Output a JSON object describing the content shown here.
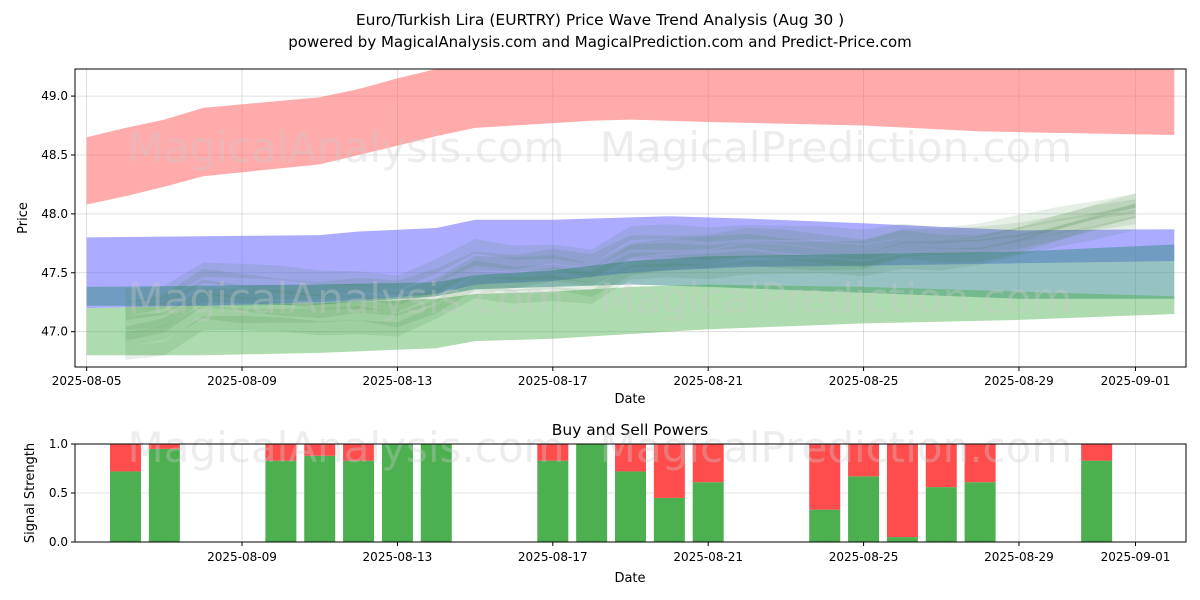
{
  "title": "Euro/Turkish Lira (EURTRY) Price Wave Trend Analysis (Aug 30 )",
  "subtitle": "powered by MagicalAnalysis.com and MagicalPrediction.com and Predict-Price.com",
  "watermark": {
    "left": "MagicalAnalysis.com",
    "right": "MagicalPrediction.com"
  },
  "colors": {
    "red_band": "#ff6666",
    "blue_band": "#6666ff",
    "green_band": "#4caf50",
    "buy": "#4caf50",
    "sell": "#ff4d4d"
  },
  "chart_data": [
    {
      "type": "area",
      "xlabel": "Date",
      "ylabel": "Price",
      "ylim": [
        46.7,
        49.23
      ],
      "yticks": [
        47.0,
        47.5,
        48.0,
        48.5,
        49.0
      ],
      "xlim": [
        "2025-08-04.7",
        "2025-09-02.3"
      ],
      "xticks": [
        "2025-08-05",
        "2025-08-09",
        "2025-08-13",
        "2025-08-17",
        "2025-08-21",
        "2025-08-25",
        "2025-08-29",
        "2025-09-01"
      ],
      "grid": true,
      "bands": [
        {
          "color": "red",
          "x": [
            "2025-08-05",
            "2025-08-06",
            "2025-08-07",
            "2025-08-08",
            "2025-08-11",
            "2025-08-12",
            "2025-08-13",
            "2025-08-14",
            "2025-08-15",
            "2025-08-18",
            "2025-08-19",
            "2025-08-21",
            "2025-08-25",
            "2025-08-28",
            "2025-09-02"
          ],
          "upper": [
            48.65,
            48.73,
            48.8,
            48.9,
            48.99,
            49.06,
            49.15,
            49.23,
            49.23,
            49.23,
            49.23,
            49.23,
            49.23,
            49.23,
            49.23
          ],
          "lower": [
            48.08,
            48.15,
            48.23,
            48.32,
            48.42,
            48.5,
            48.58,
            48.66,
            48.73,
            48.79,
            48.8,
            48.78,
            48.75,
            48.7,
            48.67
          ]
        },
        {
          "color": "blue",
          "x": [
            "2025-08-05",
            "2025-08-08",
            "2025-08-11",
            "2025-08-12",
            "2025-08-14",
            "2025-08-15",
            "2025-08-17",
            "2025-08-19",
            "2025-08-20",
            "2025-08-22",
            "2025-08-25",
            "2025-08-29",
            "2025-09-02"
          ],
          "upper": [
            47.8,
            47.81,
            47.82,
            47.85,
            47.88,
            47.95,
            47.95,
            47.97,
            47.98,
            47.96,
            47.92,
            47.86,
            47.87
          ],
          "lower": [
            47.2,
            47.22,
            47.25,
            47.27,
            47.32,
            47.4,
            47.43,
            47.5,
            47.52,
            47.55,
            47.56,
            47.58,
            47.6
          ]
        },
        {
          "color": "teal",
          "x": [
            "2025-08-05",
            "2025-08-08",
            "2025-08-11",
            "2025-08-14",
            "2025-08-15",
            "2025-08-17",
            "2025-08-19",
            "2025-08-21",
            "2025-08-25",
            "2025-08-29",
            "2025-09-02"
          ],
          "upper": [
            47.38,
            47.39,
            47.4,
            47.42,
            47.48,
            47.52,
            47.6,
            47.64,
            47.66,
            47.68,
            47.74
          ],
          "lower": [
            47.22,
            47.22,
            47.23,
            47.3,
            47.36,
            47.38,
            47.4,
            47.38,
            47.33,
            47.28,
            47.28
          ]
        },
        {
          "color": "green",
          "x": [
            "2025-08-05",
            "2025-08-08",
            "2025-08-11",
            "2025-08-14",
            "2025-08-15",
            "2025-08-17",
            "2025-08-19",
            "2025-08-21",
            "2025-08-25",
            "2025-08-29",
            "2025-09-02"
          ],
          "upper": [
            47.2,
            47.22,
            47.24,
            47.28,
            47.32,
            47.34,
            47.38,
            47.4,
            47.38,
            47.34,
            47.3
          ],
          "lower": [
            46.8,
            46.8,
            46.82,
            46.86,
            46.92,
            46.94,
            46.98,
            47.02,
            47.07,
            47.1,
            47.15
          ]
        }
      ],
      "wave_lines": {
        "color": "green",
        "x": [
          "2025-08-06",
          "2025-08-07",
          "2025-08-08",
          "2025-08-09",
          "2025-08-10",
          "2025-08-11",
          "2025-08-12",
          "2025-08-13",
          "2025-08-14",
          "2025-08-15",
          "2025-08-16",
          "2025-08-17",
          "2025-08-18",
          "2025-08-19",
          "2025-08-20",
          "2025-08-21",
          "2025-08-22",
          "2025-08-23",
          "2025-08-24",
          "2025-08-25",
          "2025-08-26",
          "2025-08-27",
          "2025-08-28",
          "2025-08-29",
          "2025-08-30",
          "2025-08-31",
          "2025-09-01"
        ],
        "center": [
          47.1,
          47.15,
          47.35,
          47.32,
          47.3,
          47.28,
          47.3,
          47.26,
          47.38,
          47.55,
          47.52,
          47.55,
          47.5,
          47.68,
          47.7,
          47.7,
          47.74,
          47.72,
          47.7,
          47.68,
          47.76,
          47.74,
          47.76,
          47.82,
          47.9,
          47.98,
          48.05
        ]
      }
    },
    {
      "type": "bar",
      "title": "Buy and Sell Powers",
      "xlabel": "Date",
      "ylabel": "Signal Strength",
      "ylim": [
        0,
        1.0
      ],
      "yticks": [
        0.0,
        0.5,
        1.0
      ],
      "xticks": [
        "2025-08-09",
        "2025-08-13",
        "2025-08-17",
        "2025-08-21",
        "2025-08-25",
        "2025-08-29",
        "2025-09-01"
      ],
      "categories": [
        "2025-08-06",
        "2025-08-07",
        "2025-08-10",
        "2025-08-11",
        "2025-08-12",
        "2025-08-13",
        "2025-08-14",
        "2025-08-17",
        "2025-08-18",
        "2025-08-19",
        "2025-08-20",
        "2025-08-21",
        "2025-08-24",
        "2025-08-25",
        "2025-08-26",
        "2025-08-27",
        "2025-08-28",
        "2025-08-31"
      ],
      "series": [
        {
          "values": [
            0.72,
            0.95,
            0.83,
            0.88,
            0.83,
            1.0,
            1.0,
            0.83,
            1.0,
            0.72,
            0.45,
            0.61,
            0.33,
            0.67,
            0.05,
            0.56,
            0.61,
            0.83
          ]
        },
        {
          "values": [
            0.28,
            0.05,
            0.17,
            0.12,
            0.17,
            0.0,
            0.0,
            0.17,
            0.0,
            0.28,
            0.55,
            0.39,
            0.67,
            0.33,
            0.95,
            0.44,
            0.39,
            0.17
          ]
        }
      ]
    }
  ]
}
